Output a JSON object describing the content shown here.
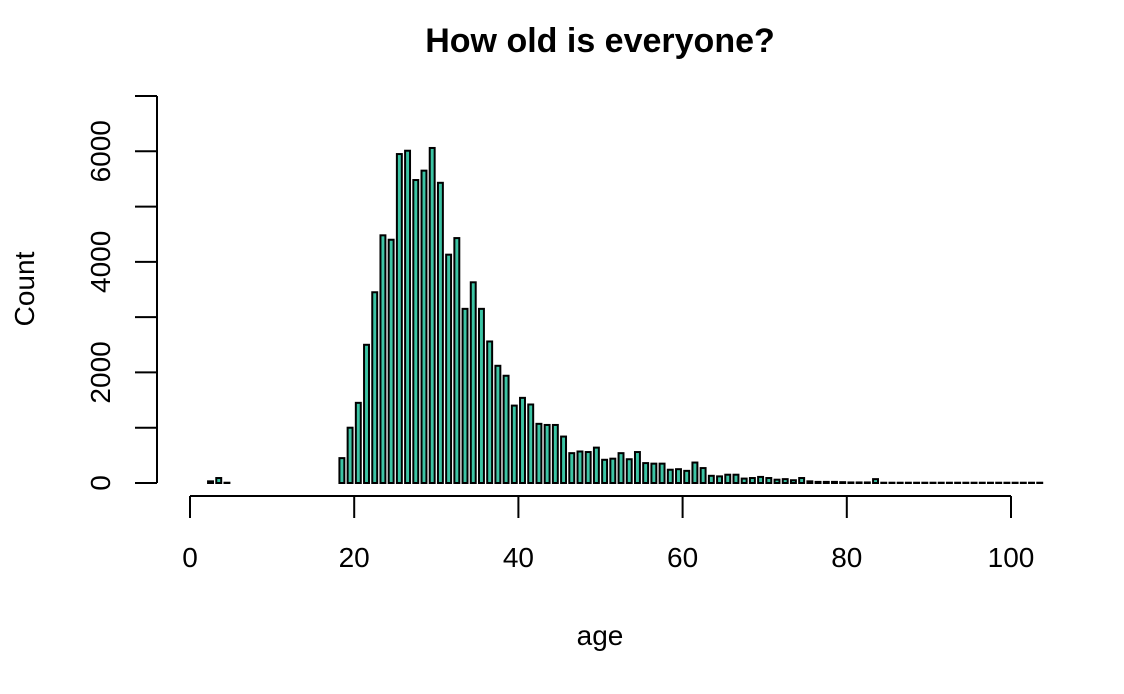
{
  "chart_data": {
    "type": "bar",
    "title": "How old is everyone?",
    "xlabel": "age",
    "ylabel": "Count",
    "xlim": [
      0,
      100
    ],
    "ylim": [
      0,
      7000
    ],
    "x_ticks": [
      0,
      20,
      40,
      60,
      80,
      100
    ],
    "y_ticks": [
      0,
      1000,
      2000,
      3000,
      4000,
      5000,
      6000,
      7000
    ],
    "x_tick_labels": [
      "0",
      "20",
      "40",
      "60",
      "80",
      "100"
    ],
    "y_tick_labels": [
      "0",
      "",
      "2000",
      "",
      "4000",
      "",
      "6000",
      ""
    ],
    "grid": false,
    "bar_color": "#3cc4a4",
    "categories": [
      2,
      3,
      4,
      5,
      6,
      7,
      8,
      9,
      10,
      11,
      12,
      13,
      14,
      15,
      16,
      17,
      18,
      19,
      20,
      21,
      22,
      23,
      24,
      25,
      26,
      27,
      28,
      29,
      30,
      31,
      32,
      33,
      34,
      35,
      36,
      37,
      38,
      39,
      40,
      41,
      42,
      43,
      44,
      45,
      46,
      47,
      48,
      49,
      50,
      51,
      52,
      53,
      54,
      55,
      56,
      57,
      58,
      59,
      60,
      61,
      62,
      63,
      64,
      65,
      66,
      67,
      68,
      69,
      70,
      71,
      72,
      73,
      74,
      75,
      76,
      77,
      78,
      79,
      80,
      81,
      82,
      83,
      84,
      85,
      86,
      87,
      88,
      89,
      90,
      91,
      92,
      93,
      94,
      95,
      96,
      97,
      98,
      99,
      100,
      101,
      102,
      103
    ],
    "values": [
      30,
      90,
      5,
      0,
      0,
      0,
      0,
      0,
      0,
      0,
      0,
      0,
      0,
      0,
      0,
      0,
      450,
      1000,
      1450,
      2500,
      3450,
      4480,
      4400,
      5950,
      6010,
      5480,
      5650,
      6060,
      5430,
      4130,
      4430,
      3150,
      3630,
      3150,
      2560,
      2120,
      1940,
      1400,
      1540,
      1420,
      1070,
      1050,
      1050,
      840,
      540,
      570,
      560,
      640,
      420,
      440,
      540,
      430,
      560,
      360,
      350,
      350,
      240,
      250,
      220,
      370,
      270,
      130,
      120,
      150,
      150,
      80,
      90,
      110,
      90,
      60,
      70,
      50,
      90,
      30,
      20,
      20,
      20,
      15,
      10,
      10,
      10,
      70,
      5,
      5,
      5,
      5,
      5,
      5,
      5,
      5,
      5,
      5,
      5,
      5,
      5,
      5,
      5,
      5,
      5,
      5,
      5,
      5
    ]
  }
}
